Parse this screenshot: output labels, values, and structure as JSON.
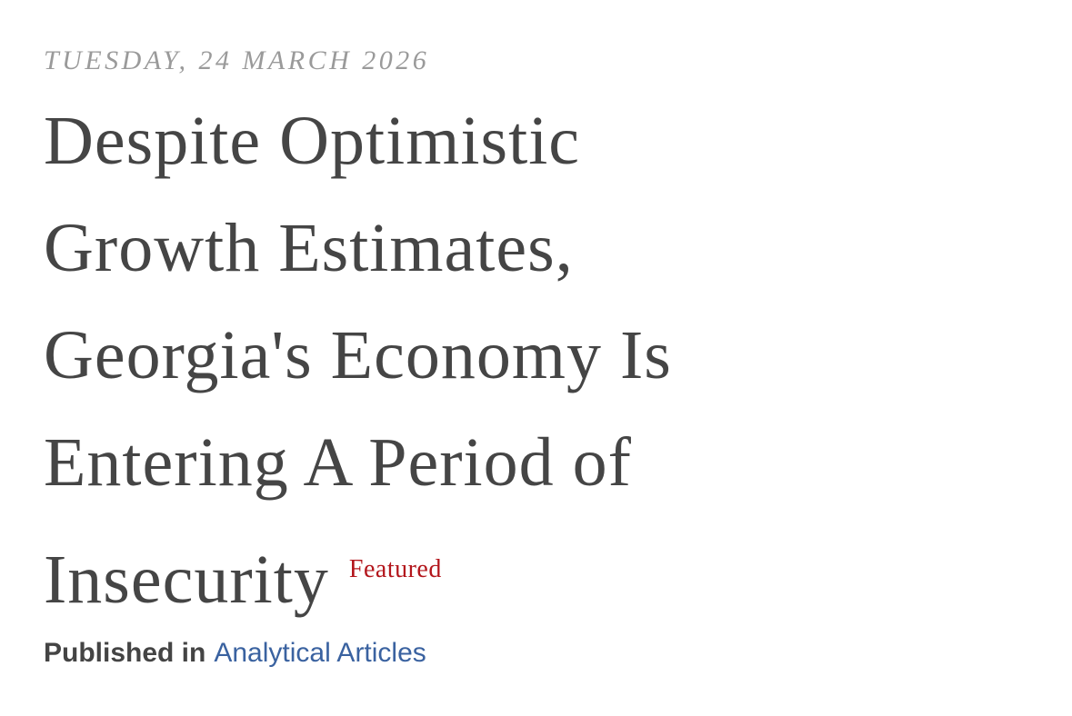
{
  "date": "TUESDAY, 24 MARCH 2026",
  "title_lines": [
    "Despite Optimistic",
    "Growth Estimates,",
    "Georgia's Economy Is",
    "Entering A Period of",
    "Insecurity"
  ],
  "badge": "Featured",
  "byline": {
    "label": "Published in",
    "link": "Analytical Articles"
  }
}
